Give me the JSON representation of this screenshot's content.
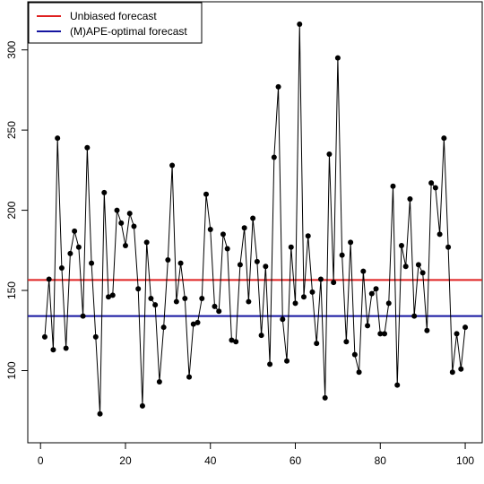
{
  "chart_data": {
    "type": "line",
    "title": "",
    "xlabel": "",
    "ylabel": "",
    "xlim": [
      -3,
      104
    ],
    "ylim": [
      55,
      330
    ],
    "x_ticks": [
      0,
      20,
      40,
      60,
      80,
      100
    ],
    "y_ticks": [
      100,
      150,
      200,
      250,
      300
    ],
    "series": [
      {
        "style": "points-and-lines",
        "color": "#000000",
        "x": [
          1,
          2,
          3,
          4,
          5,
          6,
          7,
          8,
          9,
          10,
          11,
          12,
          13,
          14,
          15,
          16,
          17,
          18,
          19,
          20,
          21,
          22,
          23,
          24,
          25,
          26,
          27,
          28,
          29,
          30,
          31,
          32,
          33,
          34,
          35,
          36,
          37,
          38,
          39,
          40,
          41,
          42,
          43,
          44,
          45,
          46,
          47,
          48,
          49,
          50,
          51,
          52,
          53,
          54,
          55,
          56,
          57,
          58,
          59,
          60,
          61,
          62,
          63,
          64,
          65,
          66,
          67,
          68,
          69,
          70,
          71,
          72,
          73,
          74,
          75,
          76,
          77,
          78,
          79,
          80,
          81,
          82,
          83,
          84,
          85,
          86,
          87,
          88,
          89,
          90,
          91,
          92,
          93,
          94,
          95,
          96,
          97,
          98,
          99,
          100
        ],
        "y": [
          121,
          157,
          113,
          245,
          164,
          114,
          173,
          187,
          177,
          134,
          239,
          167,
          121,
          73,
          211,
          146,
          147,
          200,
          192,
          178,
          198,
          190,
          151,
          78,
          180,
          145,
          141,
          93,
          127,
          169,
          228,
          143,
          167,
          145,
          96,
          129,
          130,
          145,
          210,
          188,
          140,
          137,
          185,
          176,
          119,
          118,
          166,
          189,
          143,
          195,
          168,
          122,
          165,
          104,
          233,
          277,
          132,
          106,
          177,
          142,
          316,
          146,
          184,
          149,
          117,
          157,
          83,
          235,
          155,
          295,
          172,
          118,
          180,
          110,
          99,
          162,
          128,
          148,
          151,
          123,
          123,
          142,
          215,
          91,
          178,
          165,
          207,
          134,
          166,
          161,
          125,
          217,
          214,
          185,
          245,
          177,
          99,
          123,
          101,
          127
        ]
      }
    ],
    "hlines": [
      {
        "name": "Unbiased forecast",
        "y": 156.5,
        "color": "#DF2020"
      },
      {
        "name": "(M)APE-optimal forecast",
        "y": 134,
        "color": "#1515A0"
      }
    ],
    "legend": {
      "position": "top-left",
      "entries": [
        {
          "label": "Unbiased forecast",
          "color": "#DF2020"
        },
        {
          "label": "(M)APE-optimal forecast",
          "color": "#1515A0"
        }
      ]
    },
    "grid": false
  }
}
